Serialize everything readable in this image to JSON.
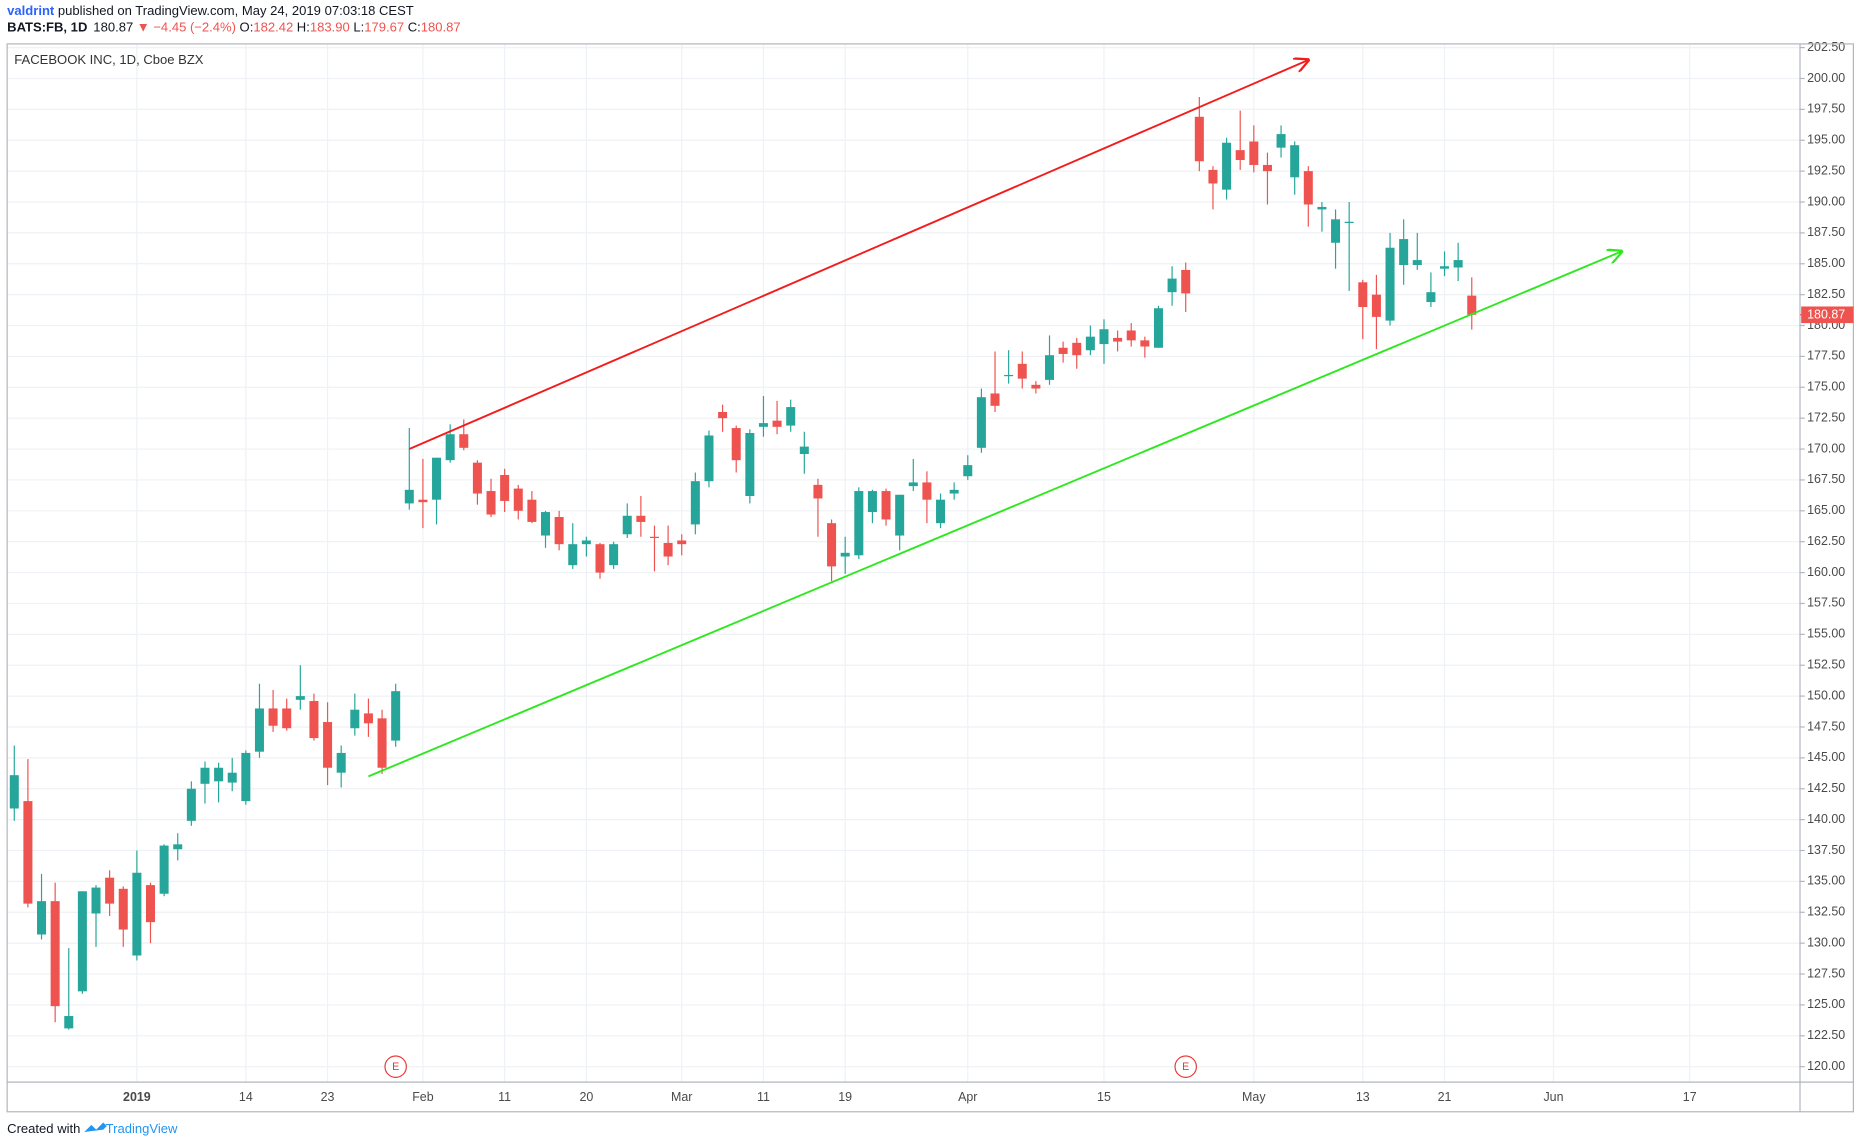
{
  "header": {
    "publisher": "valdrint",
    "published": " published on TradingView.com, May 24, 2019 07:03:18 CEST",
    "symbol": "BATS:FB, 1D",
    "last": "180.87",
    "change": "▼ −4.45 (−2.4%)",
    "ohlc": [
      {
        "key": "O:",
        "value": "182.42"
      },
      {
        "key": "H:",
        "value": "183.90"
      },
      {
        "key": "L:",
        "value": "179.67"
      },
      {
        "key": "C:",
        "value": "180.87"
      }
    ]
  },
  "footer": {
    "created_with": "Created with",
    "brand": "TradingView"
  },
  "chart_data": {
    "type": "candlestick",
    "title": "FACEBOOK INC, 1D, Cboe BZX",
    "up_color": "#26a69a",
    "down_color": "#ef5350",
    "grid": true,
    "categories": [
      null,
      null,
      null,
      null,
      null,
      null,
      null,
      null,
      null,
      "2019",
      null,
      null,
      null,
      null,
      null,
      null,
      null,
      "14",
      null,
      null,
      null,
      null,
      null,
      "23",
      null,
      null,
      null,
      null,
      null,
      null,
      "Feb",
      null,
      null,
      null,
      null,
      null,
      "11",
      null,
      null,
      null,
      null,
      null,
      "20",
      null,
      null,
      null,
      null,
      null,
      null,
      "Mar",
      null,
      null,
      null,
      null,
      null,
      "11",
      null,
      null,
      null,
      null,
      null,
      "19",
      null,
      null,
      null,
      null,
      null,
      null,
      null,
      null,
      "Apr",
      null,
      null,
      null,
      null,
      null,
      null,
      null,
      null,
      null,
      "15",
      null,
      null,
      null,
      null,
      null,
      null,
      null,
      null,
      null,
      null,
      "May",
      null,
      null,
      null,
      null,
      null,
      null,
      null,
      "13",
      null,
      null,
      null,
      null,
      null,
      "21",
      null,
      null,
      null,
      null,
      null,
      null,
      null,
      "Jun",
      null,
      null,
      null,
      null,
      null,
      null,
      null,
      null,
      null,
      "17"
    ],
    "open": [
      140.9,
      141.5,
      130.7,
      133.4,
      123.1,
      126.1,
      132.4,
      135.3,
      134.4,
      129.0,
      134.7,
      134.0,
      137.6,
      139.9,
      142.9,
      143.1,
      143.0,
      141.5,
      145.5,
      149.0,
      149.0,
      149.7,
      149.6,
      147.9,
      143.8,
      147.4,
      148.6,
      148.2,
      146.4,
      165.6,
      165.9,
      165.9,
      169.1,
      171.2,
      168.9,
      166.6,
      167.9,
      166.8,
      165.9,
      163.0,
      164.5,
      160.6,
      162.3,
      162.3,
      160.6,
      163.1,
      164.6,
      162.9,
      162.4,
      162.6,
      163.9,
      167.4,
      173.0,
      171.7,
      166.2,
      171.8,
      172.3,
      171.9,
      169.6,
      167.1,
      164.0,
      161.3,
      161.4,
      164.9,
      166.6,
      163.0,
      167.0,
      167.3,
      164.0,
      166.4,
      167.8,
      170.1,
      174.5,
      175.9,
      176.9,
      175.2,
      175.6,
      178.2,
      178.6,
      178.0,
      178.5,
      179.0,
      179.6,
      178.8,
      178.2,
      182.7,
      184.5,
      196.9,
      192.6,
      191.0,
      194.2,
      194.9,
      193.0,
      194.4,
      192.0,
      192.5,
      189.4,
      186.7,
      188.3,
      183.5,
      182.5,
      180.4,
      184.9,
      184.9,
      181.9,
      184.6,
      184.7,
      182.42,
      null,
      null,
      null,
      null,
      null,
      null,
      null,
      null,
      null,
      null,
      null,
      null,
      null,
      null,
      null,
      null
    ],
    "high": [
      146.0,
      144.9,
      135.6,
      134.9,
      129.6,
      134.2,
      134.7,
      135.9,
      134.6,
      137.5,
      134.9,
      138.0,
      138.9,
      143.1,
      144.7,
      144.6,
      145.0,
      145.6,
      151.0,
      150.5,
      149.8,
      152.5,
      150.2,
      149.5,
      146.0,
      150.2,
      149.8,
      148.9,
      151.0,
      171.7,
      169.2,
      169.3,
      172.0,
      172.4,
      169.1,
      167.6,
      168.4,
      167.1,
      166.6,
      165.0,
      165.0,
      164.0,
      162.9,
      162.4,
      162.5,
      165.6,
      166.2,
      163.8,
      163.8,
      163.1,
      168.1,
      171.5,
      173.6,
      171.9,
      171.6,
      174.3,
      173.9,
      174.0,
      171.4,
      167.6,
      164.3,
      162.9,
      166.9,
      166.7,
      166.8,
      166.3,
      169.2,
      168.2,
      166.4,
      167.3,
      169.5,
      174.9,
      177.9,
      178.0,
      177.9,
      175.5,
      179.2,
      178.7,
      179.0,
      180.0,
      180.5,
      179.6,
      180.2,
      179.1,
      181.6,
      184.8,
      185.1,
      198.5,
      192.9,
      195.2,
      197.4,
      196.2,
      194.0,
      196.2,
      194.9,
      192.9,
      190.0,
      189.4,
      190.0,
      183.7,
      184.1,
      187.5,
      188.6,
      187.5,
      184.3,
      186.0,
      186.7,
      183.9,
      null,
      null,
      null,
      null,
      null,
      null,
      null,
      null,
      null,
      null,
      null,
      null,
      null,
      null,
      null,
      null
    ],
    "low": [
      139.9,
      132.9,
      130.3,
      123.6,
      123.0,
      125.9,
      129.7,
      132.2,
      129.7,
      128.6,
      130.0,
      133.8,
      136.7,
      139.5,
      141.3,
      141.4,
      142.3,
      141.2,
      145.0,
      147.1,
      147.2,
      148.9,
      146.4,
      142.8,
      142.6,
      146.8,
      146.7,
      143.7,
      145.9,
      165.1,
      163.6,
      163.9,
      168.9,
      169.9,
      165.5,
      164.5,
      164.9,
      164.3,
      164.0,
      162.0,
      161.8,
      160.3,
      161.3,
      159.5,
      160.3,
      162.8,
      162.9,
      160.1,
      160.6,
      161.4,
      163.1,
      166.9,
      171.4,
      168.1,
      165.6,
      171.0,
      171.2,
      171.4,
      168.0,
      162.9,
      159.3,
      159.9,
      161.1,
      164.0,
      163.8,
      161.8,
      166.6,
      164.0,
      163.6,
      165.9,
      167.5,
      169.7,
      173.0,
      175.3,
      174.9,
      174.5,
      175.2,
      177.0,
      176.5,
      177.6,
      176.9,
      177.9,
      178.3,
      177.4,
      178.2,
      181.6,
      181.1,
      192.5,
      189.4,
      190.2,
      192.6,
      192.4,
      189.8,
      193.6,
      190.6,
      188.0,
      187.6,
      184.6,
      182.8,
      178.9,
      178.1,
      180.0,
      183.3,
      184.5,
      181.5,
      184.0,
      183.6,
      179.67,
      null,
      null,
      null,
      null,
      null,
      null,
      null,
      null,
      null,
      null,
      null,
      null,
      null,
      null,
      null,
      null
    ],
    "close": [
      143.6,
      133.2,
      133.4,
      124.9,
      124.1,
      134.2,
      134.5,
      133.2,
      131.1,
      135.7,
      131.7,
      137.9,
      138.0,
      142.5,
      144.2,
      144.2,
      143.8,
      145.4,
      149.0,
      147.6,
      147.4,
      150.0,
      146.6,
      144.2,
      145.4,
      148.9,
      147.8,
      144.2,
      150.4,
      166.7,
      165.7,
      169.3,
      171.2,
      170.1,
      166.4,
      164.7,
      165.8,
      165.0,
      164.1,
      164.9,
      162.3,
      162.3,
      162.6,
      160.0,
      162.3,
      164.6,
      164.1,
      162.8,
      161.3,
      162.3,
      167.4,
      171.1,
      172.5,
      169.1,
      171.3,
      172.1,
      171.8,
      173.4,
      170.2,
      166.0,
      160.5,
      161.6,
      166.6,
      166.6,
      164.3,
      166.3,
      167.3,
      165.9,
      165.9,
      166.7,
      168.7,
      174.2,
      173.5,
      176.0,
      175.7,
      174.9,
      177.6,
      177.7,
      177.6,
      179.1,
      179.7,
      178.7,
      178.8,
      178.3,
      181.4,
      183.8,
      182.6,
      193.3,
      191.5,
      194.8,
      193.4,
      193.0,
      192.5,
      195.5,
      194.6,
      189.8,
      189.6,
      188.6,
      188.4,
      181.5,
      180.7,
      186.3,
      187.0,
      185.3,
      182.7,
      184.8,
      185.3,
      180.87,
      null,
      null,
      null,
      null,
      null,
      null,
      null,
      null,
      null,
      null,
      null,
      null,
      null,
      null,
      null,
      null
    ],
    "ylim": [
      118.75,
      202.8
    ],
    "yticks": [
      {
        "value": 120,
        "label": "120.00"
      },
      {
        "value": 122.5,
        "label": "122.50"
      },
      {
        "value": 125,
        "label": "125.00"
      },
      {
        "value": 127.5,
        "label": "127.50"
      },
      {
        "value": 130,
        "label": "130.00"
      },
      {
        "value": 132.5,
        "label": "132.50"
      },
      {
        "value": 135,
        "label": "135.00"
      },
      {
        "value": 137.5,
        "label": "137.50"
      },
      {
        "value": 140,
        "label": "140.00"
      },
      {
        "value": 142.5,
        "label": "142.50"
      },
      {
        "value": 145,
        "label": "145.00"
      },
      {
        "value": 147.5,
        "label": "147.50"
      },
      {
        "value": 150,
        "label": "150.00"
      },
      {
        "value": 152.5,
        "label": "152.50"
      },
      {
        "value": 155,
        "label": "155.00"
      },
      {
        "value": 157.5,
        "label": "157.50"
      },
      {
        "value": 160,
        "label": "160.00"
      },
      {
        "value": 162.5,
        "label": "162.50"
      },
      {
        "value": 165,
        "label": "165.00"
      },
      {
        "value": 167.5,
        "label": "167.50"
      },
      {
        "value": 170,
        "label": "170.00"
      },
      {
        "value": 172.5,
        "label": "172.50"
      },
      {
        "value": 175,
        "label": "175.00"
      },
      {
        "value": 177.5,
        "label": "177.50"
      },
      {
        "value": 180,
        "label": "180.00"
      },
      {
        "value": 182.5,
        "label": "182.50"
      },
      {
        "value": 185,
        "label": "185.00"
      },
      {
        "value": 187.5,
        "label": "187.50"
      },
      {
        "value": 190,
        "label": "190.00"
      },
      {
        "value": 192.5,
        "label": "192.50"
      },
      {
        "value": 195,
        "label": "195.00"
      },
      {
        "value": 197.5,
        "label": "197.50"
      },
      {
        "value": 200,
        "label": "200.00"
      },
      {
        "value": 202.5,
        "label": "202.50"
      }
    ],
    "last_price": {
      "value": 180.87,
      "label": "180.87",
      "color": "#ef5350"
    },
    "earnings": [
      {
        "label": "E",
        "index": 28
      },
      {
        "label": "E",
        "index": 86
      }
    ],
    "trendlines": [
      {
        "color": "#f21c1c",
        "start": [
          29,
          170.0
        ],
        "end": [
          95,
          201.5
        ]
      },
      {
        "color": "#2ee81f",
        "start": [
          26,
          143.5
        ],
        "end": [
          118,
          186.0
        ]
      }
    ]
  }
}
